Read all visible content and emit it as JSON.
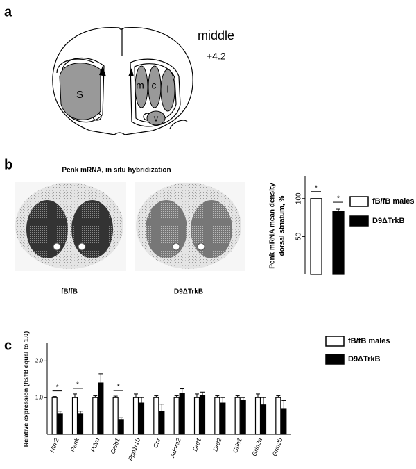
{
  "panels": {
    "a": "a",
    "b": "b",
    "c": "c"
  },
  "diagram": {
    "regions": [
      "S",
      "m",
      "c",
      "l",
      "v"
    ],
    "level": "middle",
    "coordinate": "+4.2"
  },
  "images": {
    "title": "Penk mRNA, in situ hybridization",
    "labels": [
      "fB/fB",
      "D9ΔTrkB"
    ]
  },
  "chart_data": [
    {
      "type": "bar",
      "y_label": [
        "Penk mRNA mean density",
        "dorsal striatum, %"
      ],
      "series": [
        {
          "name": "fB/fB males",
          "color": "#ffffff",
          "values": [
            100
          ],
          "errors": [
            0
          ]
        },
        {
          "name": "D9ΔTrkB",
          "color": "#000000",
          "values": [
            83
          ],
          "errors": [
            3
          ]
        }
      ],
      "annotations": [
        {
          "series": "fB/fB males",
          "text": "*"
        },
        {
          "series": "D9ΔTrkB",
          "text": "*"
        }
      ],
      "ylim": [
        0,
        130
      ],
      "yticks": [
        50,
        100
      ]
    },
    {
      "type": "bar",
      "y_label": "Relative expression (fB/fB equal to 1.0)",
      "categories": [
        "Ntrk2",
        "Penk",
        "Pdyn",
        "Calb1",
        "Ppp1r1b",
        "Cnr",
        "Adora2",
        "Drd1",
        "Drd2",
        "Grin1",
        "Grin2a",
        "Grin2b"
      ],
      "series": [
        {
          "name": "fB/fB males",
          "color": "#ffffff",
          "values": [
            1,
            1,
            1,
            1,
            1,
            1,
            1,
            1,
            1,
            1,
            1,
            1
          ],
          "errors": [
            0.03,
            0.1,
            0.05,
            0.04,
            0.1,
            0.05,
            0.05,
            0.1,
            0.05,
            0.05,
            0.1,
            0.05
          ]
        },
        {
          "name": "D9ΔTrkB",
          "color": "#000000",
          "values": [
            0.55,
            0.55,
            1.4,
            0.4,
            0.85,
            0.62,
            1.12,
            1.05,
            0.85,
            0.92,
            0.8,
            0.7
          ],
          "errors": [
            0.08,
            0.08,
            0.25,
            0.05,
            0.15,
            0.2,
            0.12,
            0.1,
            0.15,
            0.08,
            0.2,
            0.22
          ]
        }
      ],
      "annotations": [
        {
          "category": "Ntrk2",
          "text": "*"
        },
        {
          "category": "Penk",
          "text": "*"
        },
        {
          "category": "Calb1",
          "text": "*"
        }
      ],
      "ylim": [
        0,
        2.5
      ],
      "yticks": [
        {
          "value": 1,
          "label": "1.0"
        },
        {
          "value": 2,
          "label": "2.0"
        }
      ]
    }
  ]
}
